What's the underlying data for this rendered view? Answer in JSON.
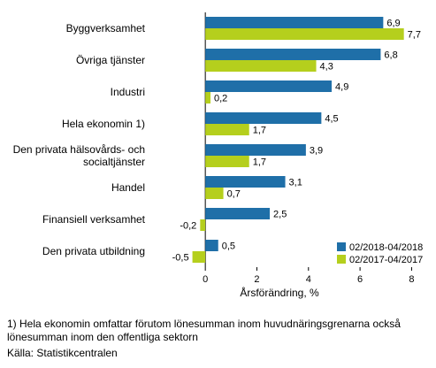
{
  "chart_data": {
    "type": "bar",
    "orientation": "horizontal",
    "categories": [
      "Byggverksamhet",
      "Övriga tjänster",
      "Industri",
      "Hela ekonomin 1)",
      "Den privata hälsovårds- och socialtjänster",
      "Handel",
      "Finansiell verksamhet",
      "Den privata utbildning"
    ],
    "category_lines": [
      [
        "Byggverksamhet"
      ],
      [
        "Övriga tjänster"
      ],
      [
        "Industri"
      ],
      [
        "Hela ekonomin 1)"
      ],
      [
        "Den privata hälsovårds- och",
        "socialtjänster"
      ],
      [
        "Handel"
      ],
      [
        "Finansiell verksamhet"
      ],
      [
        "Den privata utbildning"
      ]
    ],
    "series": [
      {
        "name": "02/2018-04/2018",
        "color": "#1f6fa8",
        "values": [
          6.9,
          6.8,
          4.9,
          4.5,
          3.9,
          3.1,
          2.5,
          0.5
        ],
        "labels": [
          "6,9",
          "6,8",
          "4,9",
          "4,5",
          "3,9",
          "3,1",
          "2,5",
          "0,5"
        ]
      },
      {
        "name": "02/2017-04/2017",
        "color": "#b5cf1d",
        "values": [
          7.7,
          4.3,
          0.2,
          1.7,
          1.7,
          0.7,
          -0.2,
          -0.5
        ],
        "labels": [
          "7,7",
          "4,3",
          "0,2",
          "1,7",
          "1,7",
          "0,7",
          "-0,2",
          "-0,5"
        ]
      }
    ],
    "xlabel": "Årsförändring, %",
    "xlim": [
      -1,
      8.5
    ],
    "xticks": [
      0,
      2,
      4,
      6,
      8
    ],
    "xtick_labels": [
      "0",
      "2",
      "4",
      "6",
      "8"
    ],
    "grid": "none",
    "legend": "bottom-right"
  },
  "footnote": {
    "line1": "1) Hela ekonomin omfattar förutom lönesumman inom huvudnäringsgrenarna också",
    "line2": "lönesumman inom den offentliga sektorn",
    "source": "Källa: Statistikcentralen"
  }
}
